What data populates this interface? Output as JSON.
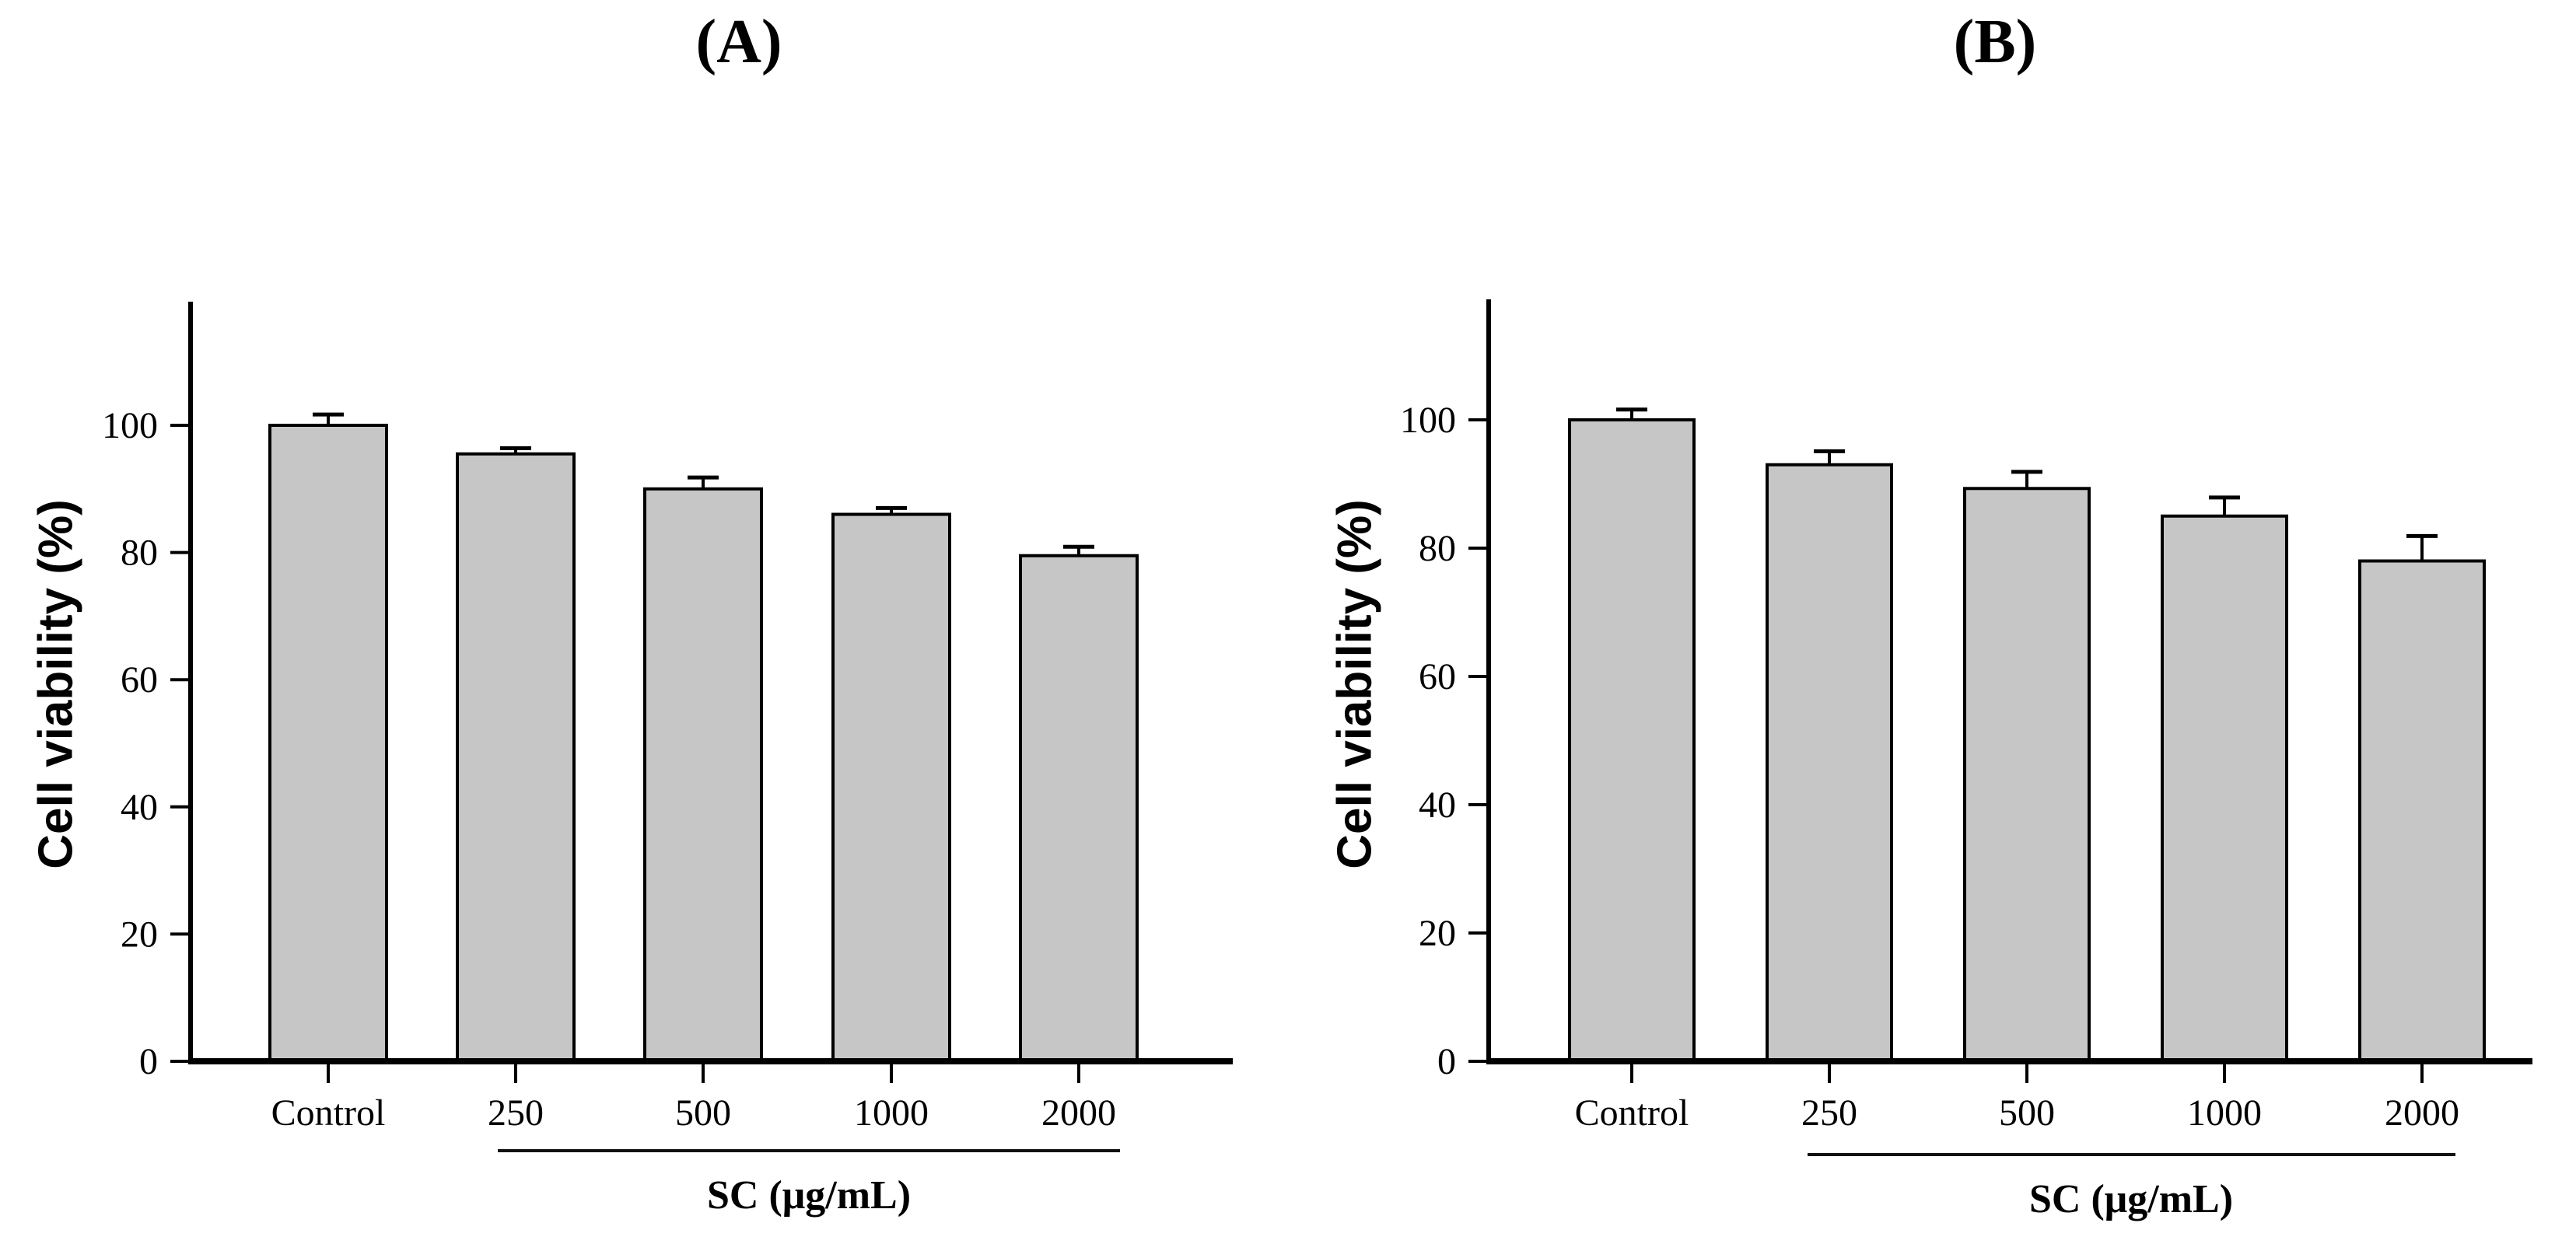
{
  "figure": {
    "background_color": "#ffffff",
    "text_color": "#000000"
  },
  "colors": {
    "bar_fill": "#c6c6c6",
    "bar_stroke": "#000000",
    "axis_color": "#000000",
    "underline_color": "#111111"
  },
  "chart_data": [
    {
      "type": "bar",
      "title": "(A)",
      "ylabel": "Cell viability (%)",
      "xlabel": "SC (μg/mL)",
      "categories": [
        "Control",
        "250",
        "500",
        "1000",
        "2000"
      ],
      "values": [
        100,
        95.5,
        90,
        86,
        79.5
      ],
      "errors": [
        1.7,
        0.9,
        1.8,
        1.0,
        1.4
      ],
      "ylim": [
        0,
        119
      ],
      "yticks": [
        0,
        20,
        40,
        60,
        80,
        100
      ],
      "grid": false,
      "legend": "none",
      "error_bars": "upper",
      "group_label_applies_to": [
        "250",
        "500",
        "1000",
        "2000"
      ]
    },
    {
      "type": "bar",
      "title": "(B)",
      "ylabel": "Cell viability (%)",
      "xlabel": "SC (μg/mL)",
      "categories": [
        "Control",
        "250",
        "500",
        "1000",
        "2000"
      ],
      "values": [
        100,
        93,
        89.3,
        85,
        78
      ],
      "errors": [
        1.6,
        2.1,
        2.6,
        2.9,
        3.9
      ],
      "ylim": [
        0,
        119
      ],
      "yticks": [
        0,
        20,
        40,
        60,
        80,
        100
      ],
      "grid": false,
      "legend": "none",
      "error_bars": "upper",
      "group_label_applies_to": [
        "250",
        "500",
        "1000",
        "2000"
      ]
    }
  ]
}
